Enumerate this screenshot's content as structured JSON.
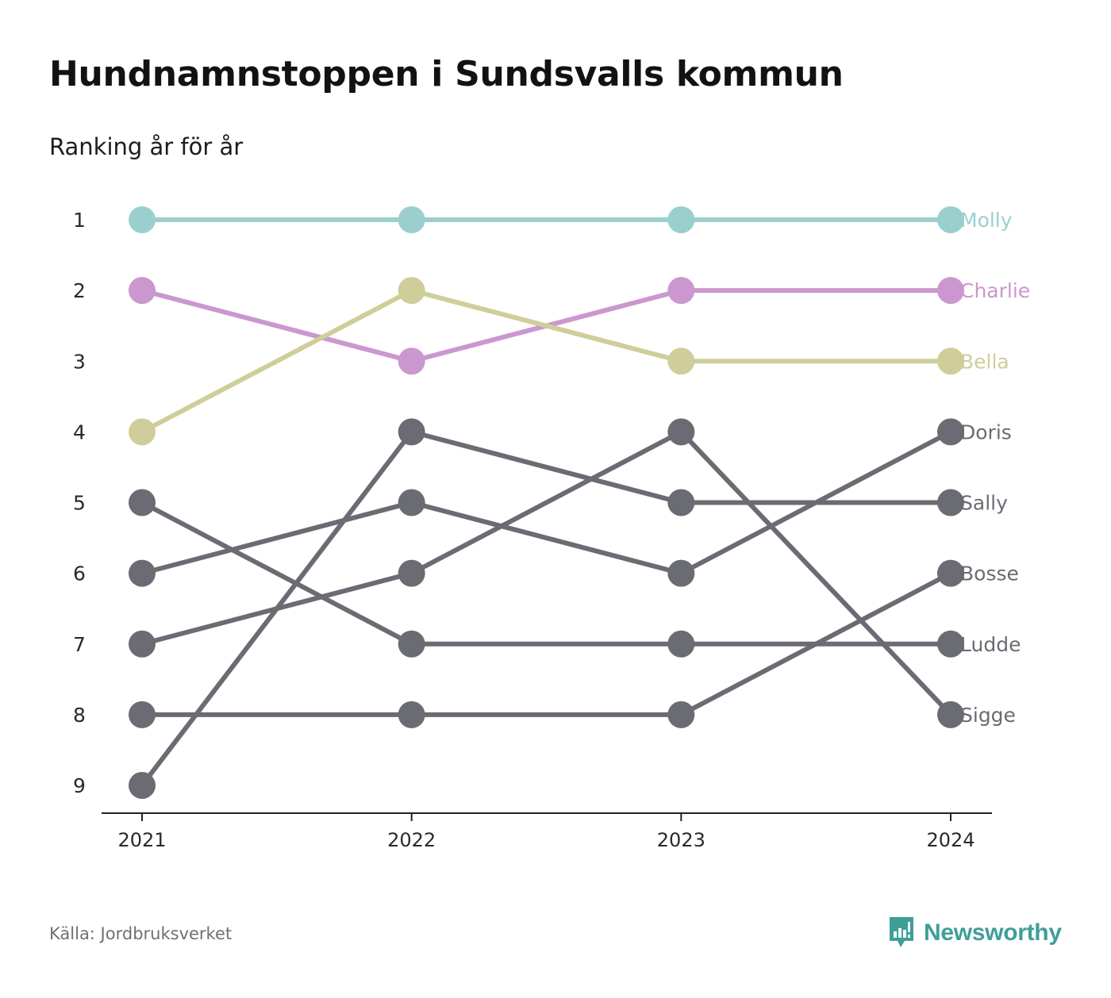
{
  "title": "Hundnamnstoppen i Sundsvalls kommun",
  "subtitle": "Ranking år för år",
  "source": "Källa: Jordbruksverket",
  "brand": {
    "name": "Newsworthy",
    "icon": "newsworthy-logo-icon"
  },
  "colors": {
    "Molly": "#9bcfce",
    "Charlie": "#cb97cf",
    "Bella": "#cfce9a",
    "other": "#6b6b73",
    "brand": "#3f9e98"
  },
  "chart_data": {
    "type": "line",
    "title": "Hundnamnstoppen i Sundsvalls kommun",
    "subtitle": "Ranking år för år",
    "x": [
      "2021",
      "2022",
      "2023",
      "2024"
    ],
    "y_ticks": [
      "1",
      "2",
      "3",
      "4",
      "5",
      "6",
      "7",
      "8",
      "9"
    ],
    "ylim": [
      1,
      9
    ],
    "y_inverted": true,
    "series": [
      {
        "name": "Molly",
        "values": [
          1,
          1,
          1,
          1
        ],
        "highlight": true
      },
      {
        "name": "Charlie",
        "values": [
          2,
          3,
          2,
          2
        ],
        "highlight": true
      },
      {
        "name": "Bella",
        "values": [
          4,
          2,
          3,
          3
        ],
        "highlight": true
      },
      {
        "name": "Doris",
        "values": [
          6,
          5,
          6,
          4
        ]
      },
      {
        "name": "Sally",
        "values": [
          9,
          4,
          5,
          5
        ]
      },
      {
        "name": "Bosse",
        "values": [
          8,
          8,
          8,
          6
        ]
      },
      {
        "name": "Ludde",
        "values": [
          5,
          7,
          7,
          7
        ]
      },
      {
        "name": "Sigge",
        "values": [
          7,
          6,
          4,
          8
        ]
      }
    ]
  }
}
